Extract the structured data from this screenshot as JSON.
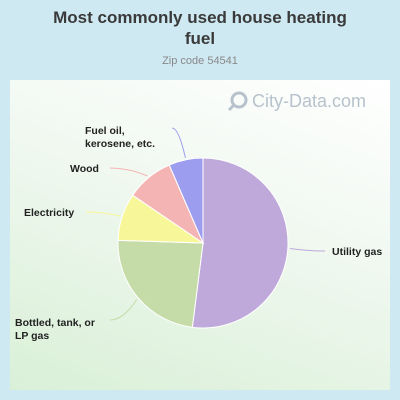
{
  "header": {
    "title_line1": "Most commonly used house heating",
    "title_line2": "fuel",
    "subtitle": "Zip code 54541"
  },
  "watermark": {
    "text": "City-Data.com",
    "icon": "magnifier-icon"
  },
  "chart_data": {
    "type": "pie",
    "title": "Most commonly used house heating fuel",
    "subtitle": "Zip code 54541",
    "start_angle_deg": 0,
    "direction": "clockwise",
    "slices": [
      {
        "label": "Utility gas",
        "value": 52.0,
        "color": "#bfa9db"
      },
      {
        "label": "Bottled, tank, or LP gas",
        "value": 23.5,
        "color": "#c6dca8"
      },
      {
        "label": "Electricity",
        "value": 9.0,
        "color": "#f7f79a"
      },
      {
        "label": "Wood",
        "value": 9.0,
        "color": "#f5b4b4"
      },
      {
        "label": "Fuel oil, kerosene, etc.",
        "value": 6.5,
        "color": "#9d9df0"
      }
    ],
    "legend": "none"
  }
}
